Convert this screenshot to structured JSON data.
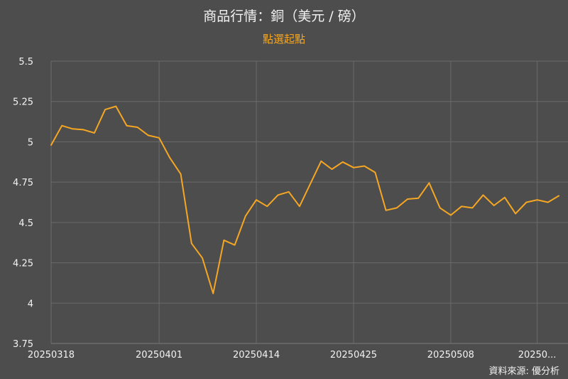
{
  "chart_data": {
    "type": "line",
    "title": "商品行情：銅（美元 / 磅）",
    "subtitle": "點選起點",
    "source": "資料來源: 優分析",
    "ylim": [
      3.75,
      5.5
    ],
    "yticks": [
      "5.5",
      "5.25",
      "5",
      "4.75",
      "4.5",
      "4.25",
      "4",
      "3.75"
    ],
    "ytick_values": [
      5.5,
      5.25,
      5,
      4.75,
      4.5,
      4.25,
      4,
      3.75
    ],
    "xtick_labels": [
      "20250318",
      "20250401",
      "20250414",
      "20250425",
      "20250508",
      "20250..."
    ],
    "xtick_index": [
      0,
      10,
      19,
      28,
      37,
      45
    ],
    "grid": true,
    "line_color": "#f5a623",
    "series": [
      {
        "values": [
          4.98,
          5.1,
          5.08,
          5.075,
          5.055,
          5.2,
          5.22,
          5.1,
          5.09,
          5.04,
          5.025,
          4.9,
          4.8,
          4.37,
          4.28,
          4.06,
          4.39,
          4.36,
          4.54,
          4.64,
          4.6,
          4.67,
          4.69,
          4.6,
          4.74,
          4.88,
          4.83,
          4.875,
          4.84,
          4.85,
          4.81,
          4.575,
          4.59,
          4.645,
          4.65,
          4.745,
          4.59,
          4.545,
          4.6,
          4.59,
          4.67,
          4.605,
          4.655,
          4.555,
          4.625,
          4.64,
          4.625,
          4.665
        ]
      }
    ]
  }
}
